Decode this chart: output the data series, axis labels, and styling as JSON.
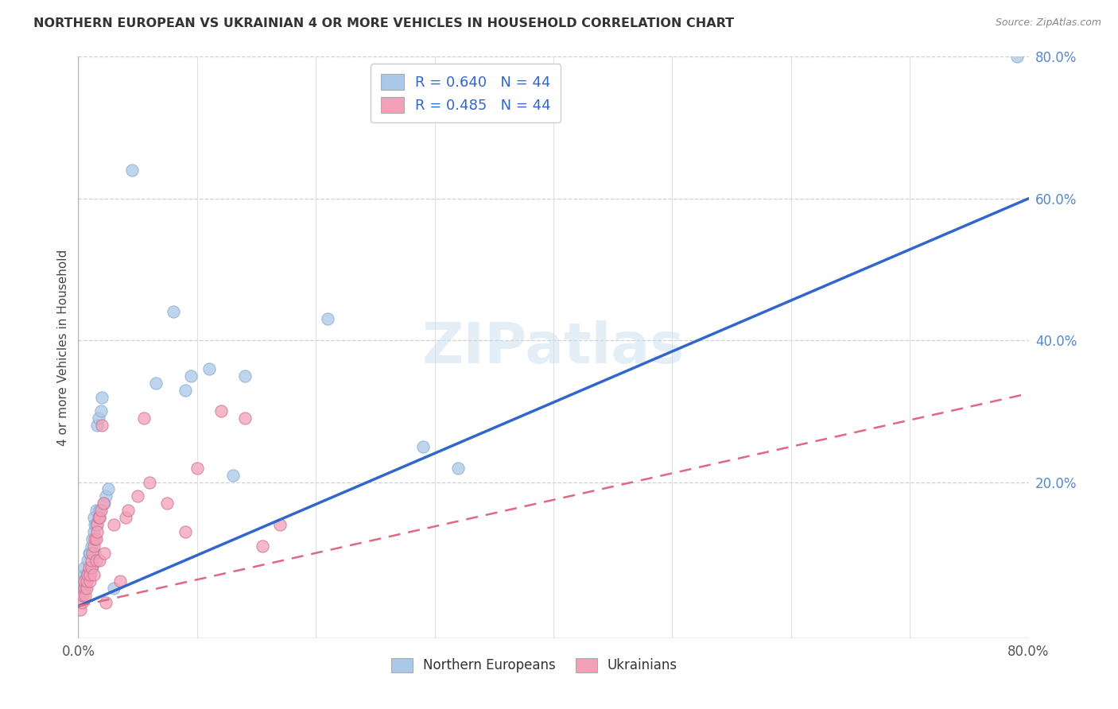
{
  "title": "NORTHERN EUROPEAN VS UKRAINIAN 4 OR MORE VEHICLES IN HOUSEHOLD CORRELATION CHART",
  "source": "Source: ZipAtlas.com",
  "ylabel": "4 or more Vehicles in Household",
  "xlim": [
    0.0,
    0.8
  ],
  "ylim": [
    -0.02,
    0.8
  ],
  "xtick_labels": [
    "0.0%",
    "80.0%"
  ],
  "xtick_vals": [
    0.0,
    0.8
  ],
  "right_ytick_vals": [
    0.2,
    0.4,
    0.6,
    0.8
  ],
  "right_ytick_labels": [
    "20.0%",
    "40.0%",
    "60.0%",
    "80.0%"
  ],
  "legend_bottom": [
    "Northern Europeans",
    "Ukrainians"
  ],
  "blue_color": "#aac8e8",
  "pink_color": "#f4a0b8",
  "blue_line_color": "#3366cc",
  "pink_line_color": "#e06880",
  "blue_scatter": [
    [
      0.002,
      0.04
    ],
    [
      0.003,
      0.05
    ],
    [
      0.004,
      0.06
    ],
    [
      0.005,
      0.07
    ],
    [
      0.005,
      0.08
    ],
    [
      0.006,
      0.05
    ],
    [
      0.007,
      0.06
    ],
    [
      0.007,
      0.07
    ],
    [
      0.008,
      0.09
    ],
    [
      0.009,
      0.1
    ],
    [
      0.01,
      0.07
    ],
    [
      0.01,
      0.08
    ],
    [
      0.01,
      0.1
    ],
    [
      0.011,
      0.11
    ],
    [
      0.012,
      0.12
    ],
    [
      0.012,
      0.08
    ],
    [
      0.013,
      0.13
    ],
    [
      0.013,
      0.15
    ],
    [
      0.014,
      0.1
    ],
    [
      0.014,
      0.14
    ],
    [
      0.015,
      0.16
    ],
    [
      0.015,
      0.14
    ],
    [
      0.016,
      0.28
    ],
    [
      0.017,
      0.29
    ],
    [
      0.018,
      0.15
    ],
    [
      0.018,
      0.16
    ],
    [
      0.019,
      0.3
    ],
    [
      0.02,
      0.32
    ],
    [
      0.022,
      0.17
    ],
    [
      0.023,
      0.18
    ],
    [
      0.025,
      0.19
    ],
    [
      0.03,
      0.05
    ],
    [
      0.045,
      0.64
    ],
    [
      0.065,
      0.34
    ],
    [
      0.08,
      0.44
    ],
    [
      0.09,
      0.33
    ],
    [
      0.095,
      0.35
    ],
    [
      0.11,
      0.36
    ],
    [
      0.13,
      0.21
    ],
    [
      0.14,
      0.35
    ],
    [
      0.21,
      0.43
    ],
    [
      0.29,
      0.25
    ],
    [
      0.32,
      0.22
    ],
    [
      0.79,
      0.8
    ]
  ],
  "pink_scatter": [
    [
      0.002,
      0.02
    ],
    [
      0.003,
      0.03
    ],
    [
      0.004,
      0.04
    ],
    [
      0.005,
      0.05
    ],
    [
      0.005,
      0.06
    ],
    [
      0.006,
      0.04
    ],
    [
      0.007,
      0.05
    ],
    [
      0.007,
      0.06
    ],
    [
      0.008,
      0.07
    ],
    [
      0.009,
      0.08
    ],
    [
      0.01,
      0.06
    ],
    [
      0.01,
      0.07
    ],
    [
      0.011,
      0.08
    ],
    [
      0.011,
      0.09
    ],
    [
      0.012,
      0.1
    ],
    [
      0.013,
      0.07
    ],
    [
      0.013,
      0.11
    ],
    [
      0.014,
      0.12
    ],
    [
      0.015,
      0.09
    ],
    [
      0.015,
      0.12
    ],
    [
      0.016,
      0.14
    ],
    [
      0.016,
      0.13
    ],
    [
      0.017,
      0.15
    ],
    [
      0.018,
      0.09
    ],
    [
      0.018,
      0.15
    ],
    [
      0.019,
      0.16
    ],
    [
      0.02,
      0.28
    ],
    [
      0.021,
      0.17
    ],
    [
      0.022,
      0.1
    ],
    [
      0.023,
      0.03
    ],
    [
      0.03,
      0.14
    ],
    [
      0.035,
      0.06
    ],
    [
      0.04,
      0.15
    ],
    [
      0.042,
      0.16
    ],
    [
      0.05,
      0.18
    ],
    [
      0.055,
      0.29
    ],
    [
      0.06,
      0.2
    ],
    [
      0.075,
      0.17
    ],
    [
      0.09,
      0.13
    ],
    [
      0.1,
      0.22
    ],
    [
      0.12,
      0.3
    ],
    [
      0.14,
      0.29
    ],
    [
      0.155,
      0.11
    ],
    [
      0.17,
      0.14
    ]
  ],
  "blue_line_x": [
    0.0,
    0.8
  ],
  "blue_line_y": [
    0.025,
    0.6
  ],
  "pink_line_x": [
    0.0,
    0.8
  ],
  "pink_line_y": [
    0.025,
    0.325
  ]
}
